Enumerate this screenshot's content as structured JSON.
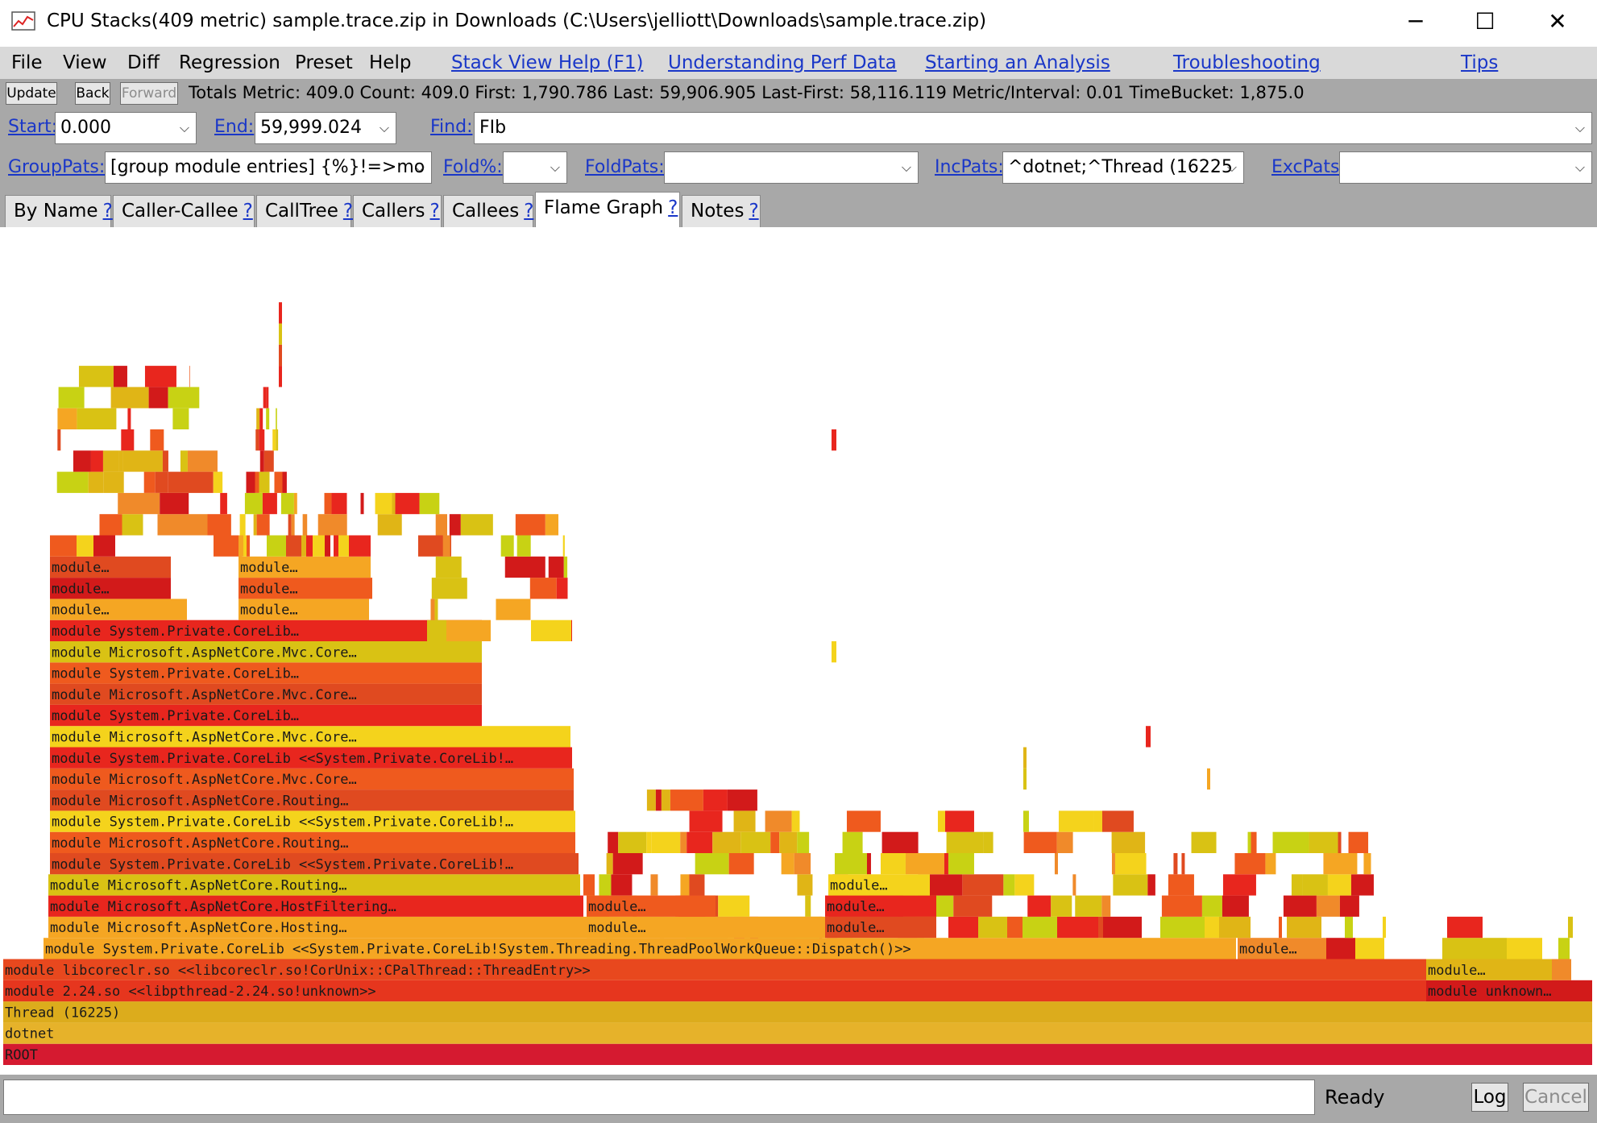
{
  "window": {
    "title": "CPU Stacks(409 metric) sample.trace.zip in Downloads (C:\\Users\\jelliott\\Downloads\\sample.trace.zip)",
    "controls": {
      "minimize": "─",
      "maximize": "☐",
      "close": "✕"
    }
  },
  "menu": {
    "items": [
      "File",
      "View",
      "Diff",
      "Regression",
      "Preset",
      "Help"
    ],
    "links": [
      "Stack View Help (F1)",
      "Understanding Perf Data",
      "Starting an Analysis",
      "Troubleshooting",
      "Tips"
    ]
  },
  "toolbar": {
    "update_label": "Update",
    "back_label": "Back",
    "forward_label": "Forward",
    "totals": "Totals Metric: 409.0  Count: 409.0  First: 1,790.786  Last: 59,906.905  Last-First: 58,116.119  Metric/Interval: 0.01  TimeBucket: 1,875.0"
  },
  "range": {
    "start_label": "Start:",
    "start_value": "0.000",
    "end_label": "End:",
    "end_value": "59,999.024",
    "find_label": "Find:",
    "find_value": "FIb"
  },
  "filters": {
    "grouppats_label": "GroupPats:",
    "grouppats_value": "[group module entries]  {%}!=>mo",
    "foldpct_label": "Fold%:",
    "foldpct_value": "",
    "foldpats_label": "FoldPats:",
    "foldpats_value": "",
    "incpats_label": "IncPats:",
    "incpats_value": "^dotnet;^Thread (16225",
    "excpats_label": "ExcPats:",
    "excpats_value": ""
  },
  "tabs": [
    {
      "label": "By Name",
      "help": "?"
    },
    {
      "label": "Caller-Callee",
      "help": "?"
    },
    {
      "label": "CallTree",
      "help": "?"
    },
    {
      "label": "Callers",
      "help": "?"
    },
    {
      "label": "Callees",
      "help": "?"
    },
    {
      "label": "Flame Graph",
      "help": "?",
      "active": true
    },
    {
      "label": "Notes",
      "help": "?"
    }
  ],
  "flame_graph": {
    "labels": {
      "root": "ROOT",
      "dotnet": "dotnet",
      "thread": "Thread (16225)",
      "pthread": "module 2.24.so <<libpthread-2.24.so!unknown>>",
      "coreclr": "module libcoreclr.so <<libcoreclr.so!CorUnix::CPalThread::ThreadEntry>>",
      "unknown": "module unknown…",
      "module_short": "module…",
      "dispatch": "module System.Private.CoreLib <<System.Private.CoreLib!System.Threading.ThreadPoolWorkQueue::Dispatch()>>",
      "hosting": "module Microsoft.AspNetCore.Hosting…",
      "hostfiltering": "module Microsoft.AspNetCore.HostFiltering…",
      "routing": "module Microsoft.AspNetCore.Routing…",
      "corelib_long": "module System.Private.CoreLib <<System.Private.CoreLib!…",
      "mvc": "module Microsoft.AspNetCore.Mvc.Core…",
      "corelib": "module System.Private.CoreLib…"
    },
    "colors": [
      "#e8261e",
      "#ef5a1e",
      "#f08a2a",
      "#f5a623",
      "#e0b516",
      "#f4d31c",
      "#d9c214",
      "#d21a1a",
      "#e04a20",
      "#c8d214"
    ],
    "base_colors": {
      "root": "#d51a30",
      "dotnet": "#e6b22a",
      "thread": "#dcac1c",
      "pthread": "#e6361e",
      "coreclr": "#e8481e"
    }
  },
  "status": {
    "state": "Ready",
    "log_label": "Log",
    "cancel_label": "Cancel"
  }
}
